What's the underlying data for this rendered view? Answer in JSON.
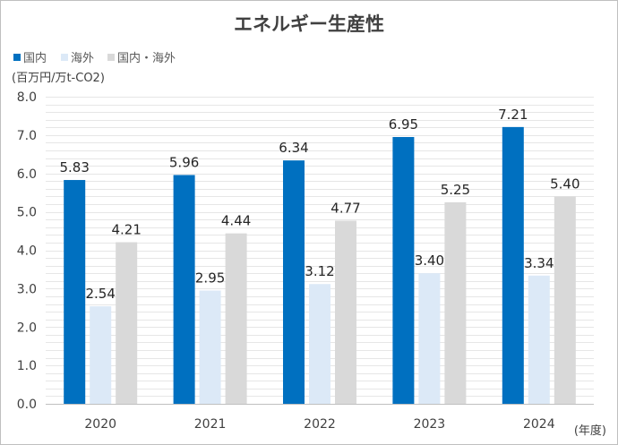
{
  "chart_data": {
    "type": "bar",
    "title": "エネルギー生産性",
    "ylabel": "(百万円/万t-CO2)",
    "xlabel": "(年度)",
    "ylim": [
      0,
      8
    ],
    "yticks": [
      "0.0",
      "1.0",
      "2.0",
      "3.0",
      "4.0",
      "5.0",
      "6.0",
      "7.0",
      "8.0"
    ],
    "categories": [
      "2020",
      "2021",
      "2022",
      "2023",
      "2024"
    ],
    "series": [
      {
        "name": "国内",
        "color": "#0070c0",
        "values": [
          5.83,
          5.96,
          6.34,
          6.95,
          7.21
        ],
        "labels": [
          "5.83",
          "5.96",
          "6.34",
          "6.95",
          "7.21"
        ]
      },
      {
        "name": "海外",
        "color": "#dce9f7",
        "values": [
          2.54,
          2.95,
          3.12,
          3.4,
          3.34
        ],
        "labels": [
          "2.54",
          "2.95",
          "3.12",
          "3.40",
          "3.34"
        ]
      },
      {
        "name": "国内・海外",
        "color": "#d9d9d9",
        "values": [
          4.21,
          4.44,
          4.77,
          5.25,
          5.4
        ],
        "labels": [
          "4.21",
          "4.44",
          "4.77",
          "5.25",
          "5.40"
        ]
      }
    ],
    "legend_position": "top-left",
    "grid": true
  }
}
